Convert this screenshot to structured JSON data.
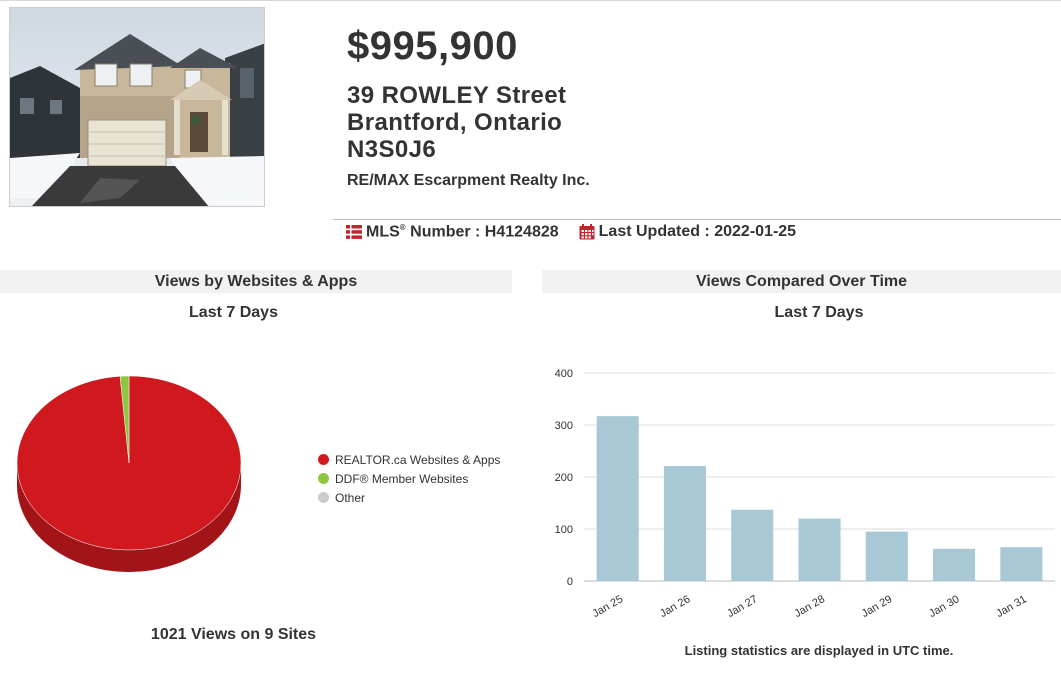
{
  "listing": {
    "price": "$995,900",
    "address_line1": "39 ROWLEY Street",
    "address_line2": "Brantford, Ontario",
    "postal_code": "N3S0J6",
    "brokerage": "RE/MAX Escarpment Realty Inc.",
    "mls_label": "MLS",
    "mls_reg": "®",
    "mls_number_label": " Number : H4124828",
    "last_updated_label": "Last Updated : 2022-01-25"
  },
  "views_by_sites": {
    "title": "Views by Websites & Apps",
    "period": "Last 7 Days",
    "footer": "1021 Views on 9 Sites",
    "legend": [
      {
        "label": "REALTOR.ca Websites & Apps",
        "color": "#d0191f"
      },
      {
        "label": "DDF® Member Websites",
        "color": "#8dc63f"
      },
      {
        "label": "Other",
        "color": "#cccccc"
      }
    ]
  },
  "views_over_time": {
    "title": "Views Compared Over Time",
    "period": "Last 7 Days",
    "note": "Listing statistics are displayed in UTC time."
  },
  "chart_data": [
    {
      "type": "pie",
      "labels": [
        "REALTOR.ca Websites & Apps",
        "DDF® Member Websites",
        "Other"
      ],
      "values": [
        1008,
        13,
        0
      ],
      "colors": [
        "#d0191f",
        "#8dc63f",
        "#cccccc"
      ],
      "legend": "right"
    },
    {
      "type": "bar",
      "categories": [
        "Jan 25",
        "Jan 26",
        "Jan 27",
        "Jan 28",
        "Jan 29",
        "Jan 30",
        "Jan 31"
      ],
      "values": [
        317,
        221,
        137,
        120,
        95,
        62,
        65
      ],
      "ylim": [
        0,
        400
      ],
      "yticks": [
        "0",
        "100",
        "200",
        "300",
        "400"
      ],
      "grid": true,
      "bar_color": "#a9c8d6"
    }
  ]
}
